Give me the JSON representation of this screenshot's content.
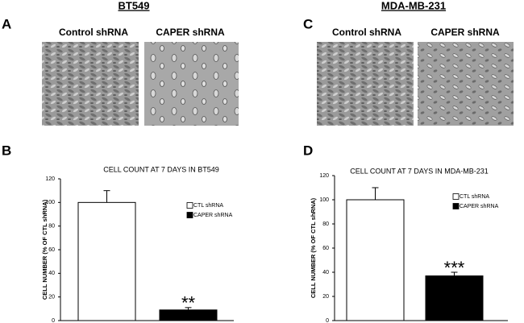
{
  "micrograph_panels": [
    {
      "letter": "A",
      "cell_line": "BT549",
      "columns": [
        "Control shRNA",
        "CAPER shRNA"
      ]
    },
    {
      "letter": "C",
      "cell_line": "MDA-MB-231",
      "columns": [
        "Control shRNA",
        "CAPER shRNA"
      ]
    }
  ],
  "chart_data": [
    {
      "type": "bar",
      "panel_label": "B",
      "title": "CELL COUNT AT 7 DAYS IN BT549",
      "y_label": "CELL NUMBER (% OF CTL shRNA)",
      "series": [
        {
          "name": "CTL shRNA",
          "color": "#ffffff",
          "values": [
            100
          ],
          "errors": [
            10
          ]
        },
        {
          "name": "CAPER shRNA",
          "color": "#000000",
          "values": [
            9
          ],
          "errors": [
            2
          ],
          "annotation": "**"
        }
      ],
      "ylim": [
        0,
        120
      ],
      "yticks": [
        0,
        20,
        40,
        60,
        80,
        100,
        120
      ],
      "grid": false,
      "legend": "upper right"
    },
    {
      "type": "bar",
      "panel_label": "D",
      "title": "CELL COUNT AT 7 DAYS IN MDA-MB-231",
      "y_label": "CELL NUMBER (% OF CTL shRNA)",
      "series": [
        {
          "name": "CTL shRNA",
          "color": "#ffffff",
          "values": [
            100
          ],
          "errors": [
            10
          ]
        },
        {
          "name": "CAPER shRNA",
          "color": "#000000",
          "values": [
            37
          ],
          "errors": [
            3
          ],
          "annotation": "***"
        }
      ],
      "ylim": [
        0,
        120
      ],
      "yticks": [
        0,
        20,
        40,
        60,
        80,
        100,
        120
      ],
      "grid": false,
      "legend": "upper right"
    }
  ]
}
